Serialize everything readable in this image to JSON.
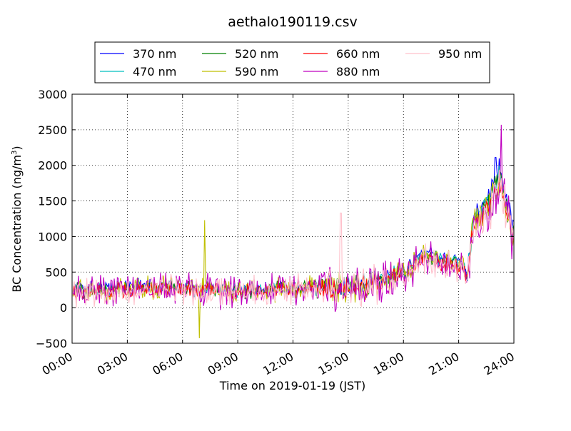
{
  "chart_data": {
    "type": "line",
    "title": "aethalo190119.csv",
    "xlabel": "Time on 2019-01-19 (JST)",
    "ylabel": "BC Concentration (ng/m",
    "ylabel_sup": "3",
    "ylabel_close": ")",
    "xlim": [
      "00:00",
      "24:00"
    ],
    "ylim": [
      -500,
      3000
    ],
    "xticks": [
      "00:00",
      "03:00",
      "06:00",
      "09:00",
      "12:00",
      "15:00",
      "18:00",
      "21:00",
      "24:00"
    ],
    "yticks": [
      "−500",
      "0",
      "500",
      "1000",
      "1500",
      "2000",
      "2500",
      "3000"
    ],
    "grid": true,
    "legend_position": "top, above plot, 4 columns",
    "series": [
      {
        "name": "370 nm",
        "color": "#0000ff",
        "seed": 11,
        "scale": 1.0
      },
      {
        "name": "470 nm",
        "color": "#00bfbf",
        "seed": 23,
        "scale": 0.97
      },
      {
        "name": "520 nm",
        "color": "#008000",
        "seed": 37,
        "scale": 0.95
      },
      {
        "name": "590 nm",
        "color": "#bfbf00",
        "seed": 41,
        "scale": 0.93
      },
      {
        "name": "660 nm",
        "color": "#ff0000",
        "seed": 53,
        "scale": 0.9
      },
      {
        "name": "880 nm",
        "color": "#bf00bf",
        "seed": 67,
        "scale": 0.88
      },
      {
        "name": "950 nm",
        "color": "#ffc0cb",
        "seed": 79,
        "scale": 0.86
      }
    ],
    "base_profile": [
      {
        "x": 0.0,
        "y": 250
      },
      {
        "x": 3.0,
        "y": 280
      },
      {
        "x": 6.0,
        "y": 300
      },
      {
        "x": 9.0,
        "y": 250
      },
      {
        "x": 12.0,
        "y": 280
      },
      {
        "x": 15.0,
        "y": 300
      },
      {
        "x": 17.0,
        "y": 420
      },
      {
        "x": 18.0,
        "y": 500
      },
      {
        "x": 19.2,
        "y": 800
      },
      {
        "x": 20.0,
        "y": 700
      },
      {
        "x": 21.0,
        "y": 650
      },
      {
        "x": 21.5,
        "y": 500
      },
      {
        "x": 21.8,
        "y": 1300
      },
      {
        "x": 22.5,
        "y": 1500
      },
      {
        "x": 23.2,
        "y": 1950
      },
      {
        "x": 23.6,
        "y": 1500
      },
      {
        "x": 24.0,
        "y": 1100
      }
    ],
    "notable_peaks": [
      {
        "series": "590 nm",
        "x": 7.2,
        "y": 1230
      },
      {
        "series": "590 nm",
        "x": 6.9,
        "y": -430
      },
      {
        "series": "950 nm",
        "x": 14.6,
        "y": 1330
      },
      {
        "series": "880 nm",
        "x": 23.3,
        "y": 2570
      },
      {
        "series": "370 nm",
        "x": 23.0,
        "y": 2110
      }
    ]
  }
}
